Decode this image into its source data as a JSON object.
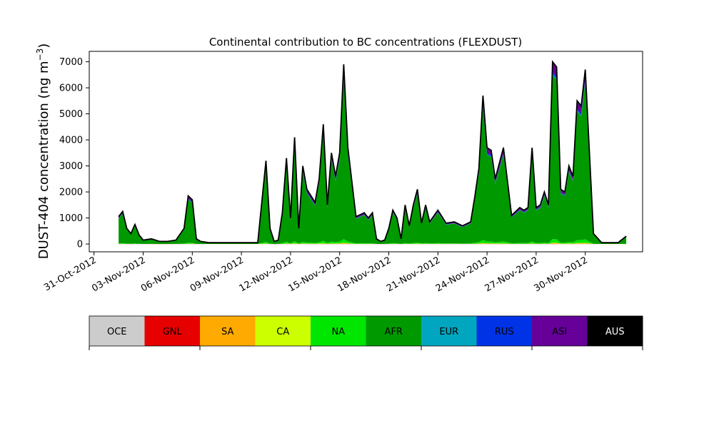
{
  "chart_data": {
    "type": "area",
    "stacked": true,
    "title": "Continental contribution to BC concentrations (FLEXDUST)",
    "ylabel_main": "DUST-404 concentration (ng m",
    "ylabel_sup": "−3",
    "ylabel_close": ")",
    "xlabel": "",
    "x_start": "2012-10-30",
    "xlim": [
      "2012-10-30T17:00",
      "2012-12-03T12:00"
    ],
    "ylim": [
      -300,
      7400
    ],
    "yticks": [
      0,
      1000,
      2000,
      3000,
      4000,
      5000,
      6000,
      7000
    ],
    "xticks": [
      {
        "date": "2012-10-31",
        "label": "31-Oct-2012"
      },
      {
        "date": "2012-11-03",
        "label": "03-Nov-2012"
      },
      {
        "date": "2012-11-06",
        "label": "06-Nov-2012"
      },
      {
        "date": "2012-11-09",
        "label": "09-Nov-2012"
      },
      {
        "date": "2012-11-12",
        "label": "12-Nov-2012"
      },
      {
        "date": "2012-11-15",
        "label": "15-Nov-2012"
      },
      {
        "date": "2012-11-18",
        "label": "18-Nov-2012"
      },
      {
        "date": "2012-11-21",
        "label": "21-Nov-2012"
      },
      {
        "date": "2012-11-24",
        "label": "24-Nov-2012"
      },
      {
        "date": "2012-11-27",
        "label": "27-Nov-2012"
      },
      {
        "date": "2012-11-30",
        "label": "30-Nov-2012"
      }
    ],
    "x": [
      "2012-11-01T12:00",
      "2012-11-01T18:00",
      "2012-11-02T00:00",
      "2012-11-02T06:00",
      "2012-11-02T12:00",
      "2012-11-02T18:00",
      "2012-11-03T00:00",
      "2012-11-03T12:00",
      "2012-11-04T00:00",
      "2012-11-04T12:00",
      "2012-11-05T00:00",
      "2012-11-05T12:00",
      "2012-11-05T18:00",
      "2012-11-06T00:00",
      "2012-11-06T06:00",
      "2012-11-06T12:00",
      "2012-11-07T00:00",
      "2012-11-07T12:00",
      "2012-11-08T00:00",
      "2012-11-08T12:00",
      "2012-11-09T00:00",
      "2012-11-09T12:00",
      "2012-11-10T00:00",
      "2012-11-10T12:00",
      "2012-11-10T18:00",
      "2012-11-11T00:00",
      "2012-11-11T06:00",
      "2012-11-11T12:00",
      "2012-11-11T18:00",
      "2012-11-12T00:00",
      "2012-11-12T06:00",
      "2012-11-12T12:00",
      "2012-11-12T18:00",
      "2012-11-13T00:00",
      "2012-11-13T12:00",
      "2012-11-13T18:00",
      "2012-11-14T00:00",
      "2012-11-14T06:00",
      "2012-11-14T12:00",
      "2012-11-14T18:00",
      "2012-11-15T00:00",
      "2012-11-15T06:00",
      "2012-11-15T12:00",
      "2012-11-16T00:00",
      "2012-11-16T12:00",
      "2012-11-16T18:00",
      "2012-11-17T00:00",
      "2012-11-17T06:00",
      "2012-11-17T12:00",
      "2012-11-17T18:00",
      "2012-11-18T00:00",
      "2012-11-18T06:00",
      "2012-11-18T12:00",
      "2012-11-18T18:00",
      "2012-11-19T00:00",
      "2012-11-19T06:00",
      "2012-11-19T12:00",
      "2012-11-19T18:00",
      "2012-11-20T00:00",
      "2012-11-20T06:00",
      "2012-11-20T12:00",
      "2012-11-21T00:00",
      "2012-11-21T12:00",
      "2012-11-22T00:00",
      "2012-11-22T12:00",
      "2012-11-23T00:00",
      "2012-11-23T06:00",
      "2012-11-23T12:00",
      "2012-11-23T18:00",
      "2012-11-24T00:00",
      "2012-11-24T06:00",
      "2012-11-24T12:00",
      "2012-11-25T00:00",
      "2012-11-25T12:00",
      "2012-11-26T00:00",
      "2012-11-26T06:00",
      "2012-11-26T12:00",
      "2012-11-26T18:00",
      "2012-11-27T00:00",
      "2012-11-27T06:00",
      "2012-11-27T12:00",
      "2012-11-27T18:00",
      "2012-11-28T00:00",
      "2012-11-28T06:00",
      "2012-11-28T12:00",
      "2012-11-28T18:00",
      "2012-11-29T00:00",
      "2012-11-29T06:00",
      "2012-11-29T12:00",
      "2012-11-29T18:00",
      "2012-11-30T00:00",
      "2012-11-30T12:00",
      "2012-12-01T00:00",
      "2012-12-01T12:00",
      "2012-12-02T00:00",
      "2012-12-02T12:00"
    ],
    "total": [
      1050,
      1250,
      600,
      400,
      750,
      350,
      150,
      200,
      100,
      100,
      150,
      600,
      1850,
      1700,
      200,
      100,
      50,
      50,
      50,
      50,
      50,
      50,
      50,
      3200,
      600,
      100,
      150,
      1200,
      3300,
      1000,
      4100,
      600,
      3000,
      2100,
      1600,
      2500,
      4600,
      1500,
      3500,
      2600,
      3500,
      6900,
      3700,
      1050,
      1200,
      1000,
      1200,
      200,
      100,
      150,
      600,
      1300,
      1000,
      200,
      1500,
      700,
      1500,
      2100,
      800,
      1500,
      850,
      1300,
      800,
      850,
      700,
      850,
      1800,
      2900,
      5700,
      3700,
      3600,
      2500,
      3700,
      1100,
      1400,
      1300,
      1400,
      3700,
      1400,
      1500,
      2000,
      1500,
      7000,
      6800,
      2100,
      2000,
      3000,
      2600,
      5500,
      5300,
      6700,
      400,
      50,
      50,
      50,
      300
    ],
    "series": [
      {
        "name": "OCE",
        "color": "#cccccc",
        "fraction": 0.0
      },
      {
        "name": "GNL",
        "color": "#e60000",
        "fraction": 0.001
      },
      {
        "name": "SA",
        "color": "#ffaa00",
        "fraction": 0.003
      },
      {
        "name": "CA",
        "color": "#ccff00",
        "fraction": 0.003
      },
      {
        "name": "NA",
        "color": "#00e600",
        "fraction": 0.02
      },
      {
        "name": "AFR",
        "color": "#009900",
        "fraction": 0.9
      },
      {
        "name": "EUR",
        "color": "#00a6bf",
        "fraction": 0.006
      },
      {
        "name": "RUS",
        "color": "#0033e6",
        "fraction": 0.012
      },
      {
        "name": "ASI",
        "color": "#660099",
        "fraction": 0.055
      },
      {
        "name": "AUS",
        "color": "#000000",
        "fraction": 0.0
      }
    ],
    "legend_placement": "bottom",
    "grid": false
  }
}
